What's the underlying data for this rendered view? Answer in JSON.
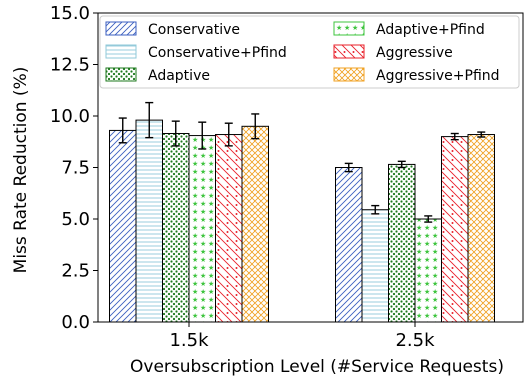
{
  "chart_data": {
    "type": "bar",
    "xlabel": "Oversubscription Level (#Service Requests)",
    "ylabel": "Miss Rate Reduction (%)",
    "ylim": [
      0,
      15
    ],
    "yticks": [
      "0.0",
      "2.5",
      "5.0",
      "7.5",
      "10.0",
      "12.5",
      "15.0"
    ],
    "categories": [
      "1.5k",
      "2.5k"
    ],
    "legend_position": "top",
    "series": [
      {
        "name": "Conservative",
        "color": "#3b5fc0",
        "pattern": "diagonal",
        "values": [
          9.3,
          7.5
        ],
        "errors": [
          0.6,
          0.2
        ]
      },
      {
        "name": "Conservative+Pfind",
        "color": "#8fc8d8",
        "pattern": "horizontal",
        "values": [
          9.8,
          5.45
        ],
        "errors": [
          0.85,
          0.2
        ]
      },
      {
        "name": "Adaptive",
        "color": "#1e7a1e",
        "pattern": "dots",
        "values": [
          9.15,
          7.65
        ],
        "errors": [
          0.6,
          0.15
        ]
      },
      {
        "name": "Adaptive+Pfind",
        "color": "#3ec43e",
        "pattern": "stars",
        "values": [
          9.05,
          5.0
        ],
        "errors": [
          0.65,
          0.15
        ]
      },
      {
        "name": "Aggressive",
        "color": "#e8202a",
        "pattern": "backslash-dots",
        "values": [
          9.1,
          9.0
        ],
        "errors": [
          0.55,
          0.15
        ]
      },
      {
        "name": "Aggressive+Pfind",
        "color": "#f0a020",
        "pattern": "crosshatch",
        "values": [
          9.5,
          9.1
        ],
        "errors": [
          0.6,
          0.12
        ]
      }
    ]
  }
}
